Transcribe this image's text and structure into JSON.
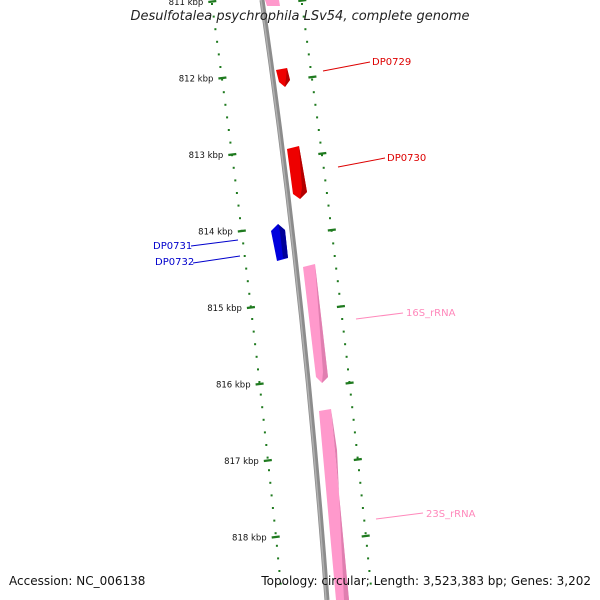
{
  "title": "Desulfotalea psychrophila LSv54, complete genome",
  "accession_label": "Accession: NC_006138",
  "topology_label": "Topology: circular; Length: 3,523,383 bp; Genes: 3,202",
  "colors": {
    "backbone": "#8c8c8c",
    "tick": "#1f7a1f",
    "forward_gene": "#ee0000",
    "reverse_gene": "#0000dd",
    "rrna": "#ff99cc",
    "rrna_label": "#ff88bb"
  },
  "ticks": [
    {
      "label": "811 kbp"
    },
    {
      "label": "812 kbp"
    },
    {
      "label": "813 kbp"
    },
    {
      "label": "814 kbp"
    },
    {
      "label": "815 kbp"
    },
    {
      "label": "816 kbp"
    },
    {
      "label": "817 kbp"
    },
    {
      "label": "818 kbp"
    }
  ],
  "features": [
    {
      "id": "rrna-top",
      "type": "rRNA",
      "strand": "forward",
      "label": ""
    },
    {
      "id": "DP0729",
      "type": "CDS",
      "strand": "forward",
      "label": "DP0729"
    },
    {
      "id": "DP0730",
      "type": "CDS",
      "strand": "forward",
      "label": "DP0730"
    },
    {
      "id": "DP0731",
      "type": "CDS",
      "strand": "reverse",
      "label": "DP0731"
    },
    {
      "id": "DP0732",
      "type": "CDS",
      "strand": "reverse",
      "label": "DP0732"
    },
    {
      "id": "16S_rRNA",
      "type": "rRNA",
      "strand": "forward",
      "label": "16S_rRNA"
    },
    {
      "id": "23S_rRNA",
      "type": "rRNA",
      "strand": "forward",
      "label": "23S_rRNA"
    }
  ]
}
